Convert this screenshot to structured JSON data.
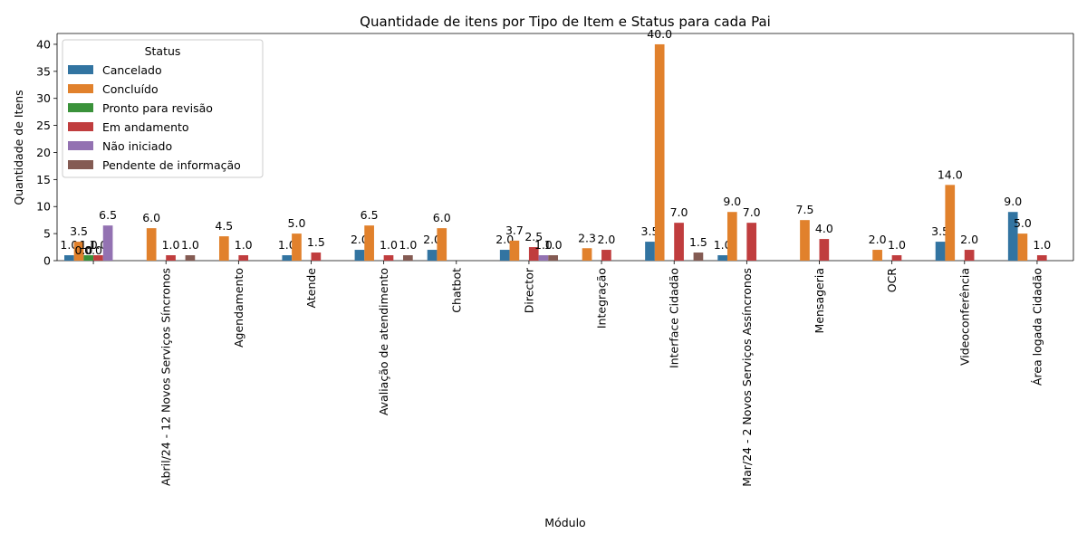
{
  "chart_data": {
    "type": "bar",
    "title": "Quantidade de itens por Tipo de Item e Status para cada Pai",
    "xlabel": "Módulo",
    "ylabel": "Quantidade de Itens",
    "ylim": [
      0,
      42
    ],
    "yticks": [
      0,
      5,
      10,
      15,
      20,
      25,
      30,
      35,
      40
    ],
    "grid": false,
    "legend": {
      "title": "Status",
      "placement": "top-left"
    },
    "categories": [
      "",
      "Abril/24 - 12 Novos Serviços Síncronos",
      "Agendamento",
      "Atende",
      "Avaliação de atendimento",
      "Chatbot",
      "Director",
      "Integração",
      "Interface Cidadão",
      "Mar/24 - 2 Novos Serviços Assíncronos",
      "Mensageria",
      "OCR",
      "Videoconferência",
      "Área logada Cidadão"
    ],
    "series": [
      {
        "name": "Cancelado",
        "color": "#3274a1",
        "values": [
          1.0,
          null,
          null,
          1.0,
          2.0,
          2.0,
          2.0,
          null,
          3.5,
          1.0,
          null,
          null,
          3.5,
          9.0
        ]
      },
      {
        "name": "Concluído",
        "color": "#e1812c",
        "values": [
          3.5,
          6.0,
          4.5,
          5.0,
          6.5,
          6.0,
          3.7,
          2.3,
          40.0,
          9.0,
          7.5,
          2.0,
          14.0,
          5.0
        ]
      },
      {
        "name": "Pronto para revisão",
        "color": "#3a923a",
        "values": [
          1.0,
          null,
          null,
          null,
          null,
          null,
          null,
          null,
          null,
          null,
          null,
          null,
          null,
          null
        ]
      },
      {
        "name": "Em andamento",
        "color": "#c03d3e",
        "values": [
          1.0,
          1.0,
          1.0,
          1.5,
          1.0,
          null,
          2.5,
          2.0,
          7.0,
          7.0,
          4.0,
          1.0,
          2.0,
          1.0
        ]
      },
      {
        "name": "Não iniciado",
        "color": "#9372b2",
        "values": [
          6.5,
          null,
          null,
          null,
          null,
          null,
          1.0,
          null,
          null,
          null,
          null,
          null,
          null,
          null
        ]
      },
      {
        "name": "Pendente de informação",
        "color": "#845b53",
        "values": [
          null,
          1.0,
          null,
          null,
          1.0,
          null,
          1.0,
          null,
          1.5,
          null,
          null,
          null,
          null,
          null
        ]
      }
    ],
    "extra_labels": [
      {
        "category": 0,
        "text": "0.0"
      },
      {
        "category": 0,
        "text": "0.0"
      }
    ]
  }
}
